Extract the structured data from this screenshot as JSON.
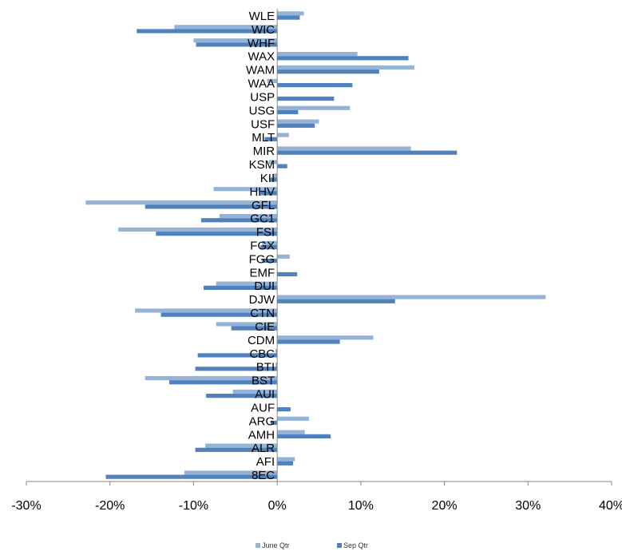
{
  "chart_data": {
    "type": "bar",
    "orientation": "horizontal",
    "title": "",
    "xlabel": "",
    "ylabel": "",
    "xlim": [
      -30,
      40
    ],
    "x_ticks": [
      -30,
      -20,
      -10,
      0,
      10,
      20,
      30,
      40
    ],
    "x_tick_labels": [
      "-30%",
      "-20%",
      "-10%",
      "0%",
      "10%",
      "20%",
      "30%",
      "40%"
    ],
    "grid": false,
    "legend_position": "bottom",
    "categories": [
      "WLE",
      "WIC",
      "WHF",
      "WAX",
      "WAM",
      "WAA",
      "USP",
      "USG",
      "USF",
      "MLT",
      "MIR",
      "KSM",
      "KII",
      "HHV",
      "GFL",
      "GC1",
      "FSI",
      "FGX",
      "FGG",
      "EMF",
      "DUI",
      "DJW",
      "CTN",
      "CIE",
      "CDM",
      "CBC",
      "BTI",
      "BST",
      "AUI",
      "AUF",
      "ARG",
      "AMH",
      "ALR",
      "AFI",
      "8EC"
    ],
    "series": [
      {
        "name": "June Qtr",
        "color": "#95b3d7",
        "values": [
          3.2,
          -12.3,
          -10.0,
          9.6,
          16.4,
          -1.2,
          0.0,
          8.7,
          5.0,
          1.4,
          16.0,
          -1.0,
          -0.5,
          -7.6,
          -22.9,
          -6.9,
          -19.0,
          -1.8,
          1.5,
          0.0,
          -7.3,
          32.1,
          -17.0,
          -7.3,
          11.5,
          -0.2,
          -0.2,
          -15.8,
          -5.3,
          0.0,
          3.8,
          3.3,
          -8.6,
          2.1,
          -11.1
        ]
      },
      {
        "name": "Sep Qtr",
        "color": "#4f81bd",
        "values": [
          2.7,
          -16.8,
          -9.7,
          15.7,
          12.2,
          9.0,
          6.8,
          2.5,
          4.5,
          -1.5,
          21.5,
          1.2,
          -0.8,
          -2.0,
          -15.8,
          -9.1,
          -14.5,
          -2.0,
          -1.8,
          2.4,
          -8.8,
          14.1,
          -13.9,
          -5.5,
          7.5,
          -9.5,
          -9.8,
          -12.9,
          -8.5,
          1.6,
          -0.8,
          6.4,
          -9.8,
          1.9,
          -20.5
        ]
      }
    ]
  }
}
